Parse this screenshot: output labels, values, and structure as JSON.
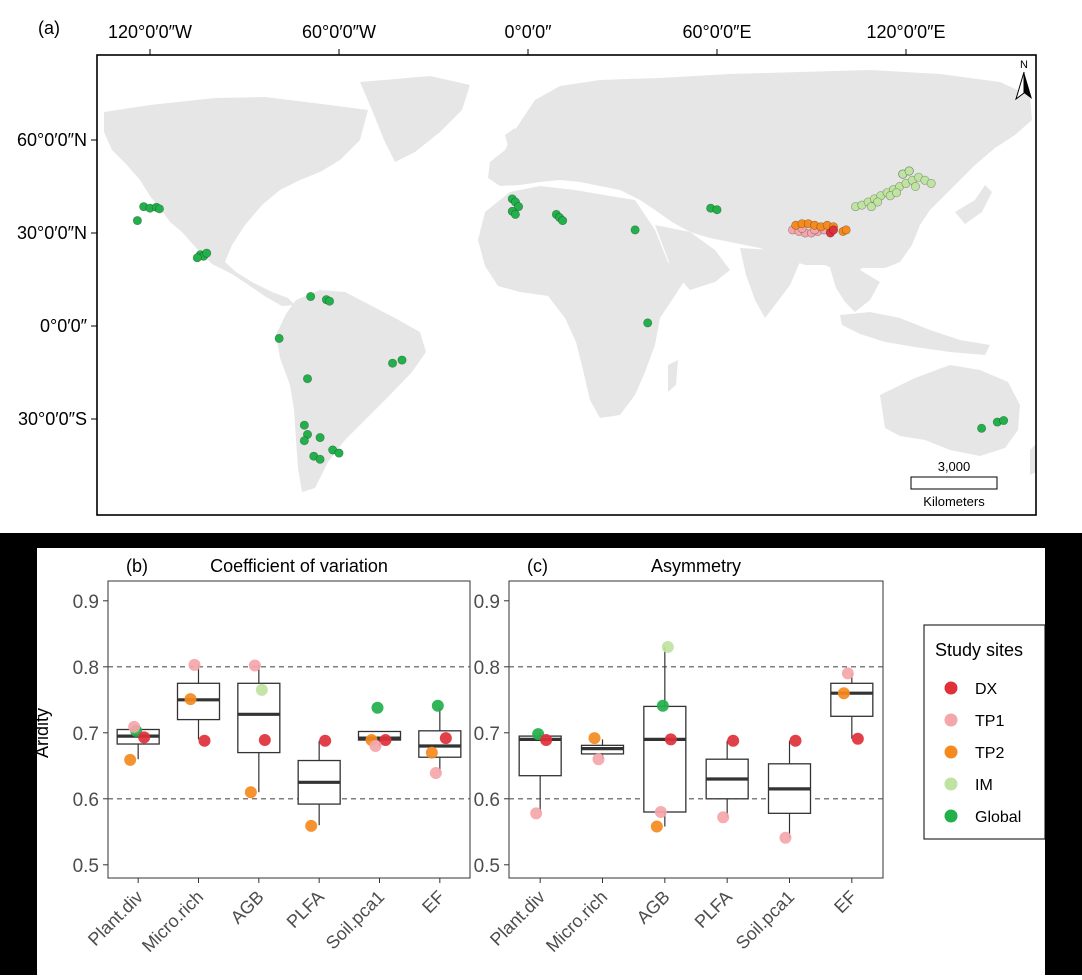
{
  "map": {
    "panel_label": "(a)",
    "lon_ticks": [
      "120°0′0″W",
      "60°0′0″W",
      "0°0′0″",
      "60°0′0″E",
      "120°0′0″E"
    ],
    "lat_ticks": [
      "60°0′0″N",
      "30°0′0″N",
      "0°0′0″",
      "30°0′0″S"
    ],
    "north_label": "N",
    "scale_value": "3,000",
    "scale_unit": "Kilometers",
    "colors": {
      "land": "#e6e6e6",
      "ocean": "#ffffff"
    }
  },
  "colors": {
    "DX": "#e0303a",
    "TP1": "#f4a6aa",
    "TP2": "#f58a1f",
    "IM": "#bfe3a0",
    "Global": "#22b04b"
  },
  "chart_data": [
    {
      "type": "scatter",
      "panel": "a",
      "xlim": [
        -180,
        180
      ],
      "ylim": [
        -60,
        85
      ],
      "series": [
        {
          "name": "Global",
          "points": [
            [
              -122,
              38.5
            ],
            [
              -120,
              38
            ],
            [
              -118,
              38.3
            ],
            [
              -117,
              37.8
            ],
            [
              -124,
              34
            ],
            [
              -104,
              23
            ],
            [
              -103,
              22.5
            ],
            [
              -102,
              23.5
            ],
            [
              -105,
              22
            ],
            [
              -69,
              9.5
            ],
            [
              -64,
              8.5
            ],
            [
              -63,
              8
            ],
            [
              -79,
              -4
            ],
            [
              -70,
              -17
            ],
            [
              -71,
              -32
            ],
            [
              -70,
              -35
            ],
            [
              -71,
              -37
            ],
            [
              -66,
              -36
            ],
            [
              -68,
              -42
            ],
            [
              -66,
              -43
            ],
            [
              -62,
              -40
            ],
            [
              -60,
              -41
            ],
            [
              -43,
              -12
            ],
            [
              -40,
              -11
            ],
            [
              -5,
              41
            ],
            [
              -4,
              40
            ],
            [
              -3,
              38.5
            ],
            [
              -5,
              37
            ],
            [
              -4,
              36
            ],
            [
              9,
              36
            ],
            [
              10,
              35
            ],
            [
              11,
              34
            ],
            [
              34,
              31
            ],
            [
              38,
              1
            ],
            [
              58,
              38
            ],
            [
              60,
              37.5
            ],
            [
              144,
              -33
            ],
            [
              149,
              -31
            ],
            [
              151,
              -30.5
            ],
            [
              119,
              49
            ],
            [
              121,
              50
            ]
          ]
        },
        {
          "name": "IM",
          "points": [
            [
              104,
              38.5
            ],
            [
              106,
              39
            ],
            [
              108,
              40
            ],
            [
              110,
              41
            ],
            [
              112,
              42
            ],
            [
              114,
              43
            ],
            [
              116,
              44
            ],
            [
              118,
              45
            ],
            [
              120,
              46
            ],
            [
              122,
              47
            ],
            [
              124,
              48
            ],
            [
              126,
              47
            ],
            [
              128,
              46
            ],
            [
              119,
              49
            ],
            [
              121,
              50
            ],
            [
              115,
              42
            ],
            [
              111,
              40
            ],
            [
              117,
              43
            ],
            [
              123,
              45
            ],
            [
              109,
              38.5
            ]
          ]
        },
        {
          "name": "TP1",
          "points": [
            [
              84,
              31
            ],
            [
              86,
              30.5
            ],
            [
              88,
              30
            ],
            [
              90,
              30
            ],
            [
              92,
              30.5
            ],
            [
              94,
              31
            ],
            [
              96,
              31
            ],
            [
              87,
              31.5
            ],
            [
              91,
              31
            ]
          ]
        },
        {
          "name": "TP2",
          "points": [
            [
              85,
              32.5
            ],
            [
              87,
              33
            ],
            [
              89,
              33
            ],
            [
              91,
              32.5
            ],
            [
              93,
              32
            ],
            [
              95,
              32.5
            ],
            [
              97,
              32
            ],
            [
              100,
              30.5
            ],
            [
              101,
              31
            ]
          ]
        },
        {
          "name": "DX",
          "points": [
            [
              96,
              30
            ],
            [
              97,
              31
            ]
          ]
        }
      ]
    },
    {
      "type": "box",
      "panel": "b",
      "panel_label": "(b)",
      "title": "Coefficient of variation",
      "ylabel": "Aridity",
      "ylim": [
        0.48,
        0.93
      ],
      "yticks": [
        0.5,
        0.6,
        0.7,
        0.8,
        0.9
      ],
      "reference_lines": [
        0.6,
        0.8
      ],
      "categories": [
        "Plant.div",
        "Micro.rich",
        "AGB",
        "PLFA",
        "Soil.pca1",
        "EF"
      ],
      "boxes": [
        {
          "min": 0.66,
          "q1": 0.683,
          "median": 0.695,
          "q3": 0.705,
          "max": 0.71
        },
        {
          "min": 0.69,
          "q1": 0.72,
          "median": 0.75,
          "q3": 0.775,
          "max": 0.803
        },
        {
          "min": 0.61,
          "q1": 0.67,
          "median": 0.728,
          "q3": 0.775,
          "max": 0.803
        },
        {
          "min": 0.56,
          "q1": 0.592,
          "median": 0.625,
          "q3": 0.658,
          "max": 0.688
        },
        {
          "min": 0.68,
          "q1": 0.689,
          "median": 0.692,
          "q3": 0.702,
          "max": 0.702
        },
        {
          "min": 0.64,
          "q1": 0.663,
          "median": 0.68,
          "q3": 0.703,
          "max": 0.738
        }
      ],
      "points": [
        {
          "cat": 0,
          "site": "Global",
          "y": 0.703
        },
        {
          "cat": 0,
          "site": "DX",
          "y": 0.693
        },
        {
          "cat": 0,
          "site": "TP1",
          "y": 0.709
        },
        {
          "cat": 0,
          "site": "TP2",
          "y": 0.659
        },
        {
          "cat": 1,
          "site": "TP1",
          "y": 0.803
        },
        {
          "cat": 1,
          "site": "TP2",
          "y": 0.751
        },
        {
          "cat": 1,
          "site": "DX",
          "y": 0.688
        },
        {
          "cat": 2,
          "site": "TP1",
          "y": 0.802
        },
        {
          "cat": 2,
          "site": "IM",
          "y": 0.765
        },
        {
          "cat": 2,
          "site": "DX",
          "y": 0.689
        },
        {
          "cat": 2,
          "site": "TP2",
          "y": 0.61
        },
        {
          "cat": 3,
          "site": "DX",
          "y": 0.688
        },
        {
          "cat": 3,
          "site": "TP2",
          "y": 0.559
        },
        {
          "cat": 4,
          "site": "Global",
          "y": 0.738
        },
        {
          "cat": 4,
          "site": "DX",
          "y": 0.689
        },
        {
          "cat": 4,
          "site": "TP2",
          "y": 0.689
        },
        {
          "cat": 4,
          "site": "TP1",
          "y": 0.68
        },
        {
          "cat": 5,
          "site": "Global",
          "y": 0.741
        },
        {
          "cat": 5,
          "site": "DX",
          "y": 0.692
        },
        {
          "cat": 5,
          "site": "TP2",
          "y": 0.67
        },
        {
          "cat": 5,
          "site": "TP1",
          "y": 0.639
        }
      ]
    },
    {
      "type": "box",
      "panel": "c",
      "panel_label": "(c)",
      "title": "Asymmetry",
      "ylabel": "",
      "ylim": [
        0.48,
        0.93
      ],
      "yticks": [
        0.5,
        0.6,
        0.7,
        0.8,
        0.9
      ],
      "reference_lines": [
        0.6,
        0.8
      ],
      "categories": [
        "Plant.div",
        "Micro.rich",
        "AGB",
        "PLFA",
        "Soil.pca1",
        "EF"
      ],
      "boxes": [
        {
          "min": 0.58,
          "q1": 0.635,
          "median": 0.69,
          "q3": 0.695,
          "max": 0.7
        },
        {
          "min": 0.66,
          "q1": 0.668,
          "median": 0.676,
          "q3": 0.681,
          "max": 0.69
        },
        {
          "min": 0.558,
          "q1": 0.58,
          "median": 0.69,
          "q3": 0.74,
          "max": 0.83
        },
        {
          "min": 0.572,
          "q1": 0.6,
          "median": 0.63,
          "q3": 0.66,
          "max": 0.688
        },
        {
          "min": 0.541,
          "q1": 0.578,
          "median": 0.615,
          "q3": 0.653,
          "max": 0.688
        },
        {
          "min": 0.691,
          "q1": 0.725,
          "median": 0.76,
          "q3": 0.775,
          "max": 0.79
        }
      ],
      "points": [
        {
          "cat": 0,
          "site": "Global",
          "y": 0.698
        },
        {
          "cat": 0,
          "site": "DX",
          "y": 0.689
        },
        {
          "cat": 0,
          "site": "TP1",
          "y": 0.578
        },
        {
          "cat": 1,
          "site": "TP2",
          "y": 0.692
        },
        {
          "cat": 1,
          "site": "TP1",
          "y": 0.66
        },
        {
          "cat": 2,
          "site": "IM",
          "y": 0.83
        },
        {
          "cat": 2,
          "site": "Global",
          "y": 0.741
        },
        {
          "cat": 2,
          "site": "DX",
          "y": 0.69
        },
        {
          "cat": 2,
          "site": "TP1",
          "y": 0.58
        },
        {
          "cat": 2,
          "site": "TP2",
          "y": 0.558
        },
        {
          "cat": 3,
          "site": "DX",
          "y": 0.688
        },
        {
          "cat": 3,
          "site": "TP1",
          "y": 0.572
        },
        {
          "cat": 4,
          "site": "DX",
          "y": 0.688
        },
        {
          "cat": 4,
          "site": "TP1",
          "y": 0.541
        },
        {
          "cat": 5,
          "site": "TP1",
          "y": 0.79
        },
        {
          "cat": 5,
          "site": "TP2",
          "y": 0.76
        },
        {
          "cat": 5,
          "site": "DX",
          "y": 0.691
        }
      ]
    }
  ],
  "legend": {
    "title": "Study sites",
    "items": [
      "DX",
      "TP1",
      "TP2",
      "IM",
      "Global"
    ]
  }
}
